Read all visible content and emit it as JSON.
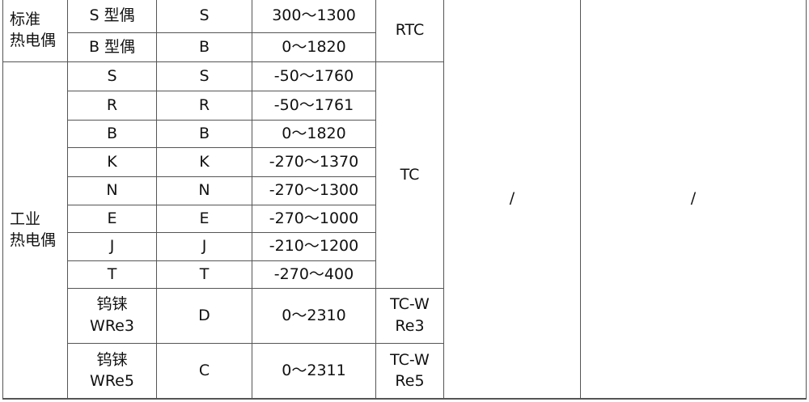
{
  "groups": {
    "standard": "标准\n热电偶",
    "industrial": "工业\n热电偶"
  },
  "rows": [
    {
      "name": "S 型偶",
      "code": "S",
      "range": "300～1300"
    },
    {
      "name": "B 型偶",
      "code": "B",
      "range": "0～1820"
    },
    {
      "name": "S",
      "code": "S",
      "range": "-50～1760"
    },
    {
      "name": "R",
      "code": "R",
      "range": "-50～1761"
    },
    {
      "name": "B",
      "code": "B",
      "range": "0～1820"
    },
    {
      "name": "K",
      "code": "K",
      "range": "-270～1370"
    },
    {
      "name": "N",
      "code": "N",
      "range": "-270～1300"
    },
    {
      "name": "E",
      "code": "E",
      "range": "-270～1000"
    },
    {
      "name": "J",
      "code": "J",
      "range": "-210～1200"
    },
    {
      "name": "T",
      "code": "T",
      "range": "-270～400"
    },
    {
      "name": "钨铼\nWRe3",
      "code": "D",
      "range": "0～2310"
    },
    {
      "name": "钨铼\nWRe5",
      "code": "C",
      "range": "0～2311"
    }
  ],
  "types": {
    "rtc": "RTC",
    "tc": "TC",
    "tcwre3": "TC-W\nRe3",
    "tcwre5": "TC-W\nRe5"
  },
  "col6": "/",
  "col7": "/"
}
